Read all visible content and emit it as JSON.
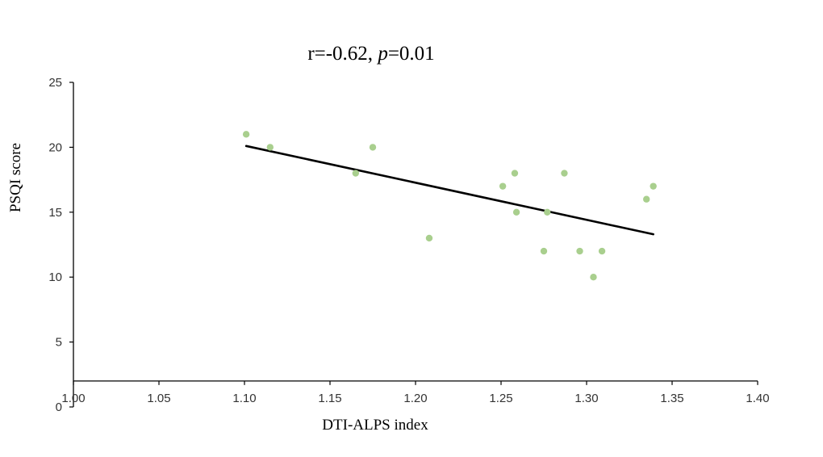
{
  "chart_data": {
    "type": "scatter",
    "title_parts": {
      "r_text": "r=-0.62, ",
      "p_italic": "p",
      "p_value": "=0.01"
    },
    "xlabel": "DTI-ALPS index",
    "ylabel": "PSQI score",
    "xlim": [
      1.0,
      1.4
    ],
    "ylim": [
      0,
      25
    ],
    "x_axis_crosses_y_at": 2,
    "xticks": [
      "1.00",
      "1.05",
      "1.10",
      "1.15",
      "1.20",
      "1.25",
      "1.30",
      "1.35",
      "1.40"
    ],
    "yticks": [
      "0",
      "5",
      "10",
      "15",
      "20",
      "25"
    ],
    "points": [
      {
        "x": 1.101,
        "y": 21
      },
      {
        "x": 1.115,
        "y": 20
      },
      {
        "x": 1.165,
        "y": 18
      },
      {
        "x": 1.175,
        "y": 20
      },
      {
        "x": 1.208,
        "y": 13
      },
      {
        "x": 1.251,
        "y": 17
      },
      {
        "x": 1.258,
        "y": 18
      },
      {
        "x": 1.259,
        "y": 15
      },
      {
        "x": 1.275,
        "y": 12
      },
      {
        "x": 1.277,
        "y": 15
      },
      {
        "x": 1.287,
        "y": 18
      },
      {
        "x": 1.296,
        "y": 12
      },
      {
        "x": 1.304,
        "y": 10
      },
      {
        "x": 1.309,
        "y": 12
      },
      {
        "x": 1.335,
        "y": 16
      },
      {
        "x": 1.339,
        "y": 17
      }
    ],
    "trendline": {
      "x": [
        1.101,
        1.339
      ],
      "y": [
        20.1,
        13.3
      ]
    },
    "colors": {
      "points": "#a9cf8e",
      "trendline": "#000000",
      "axes": "#000000"
    }
  }
}
